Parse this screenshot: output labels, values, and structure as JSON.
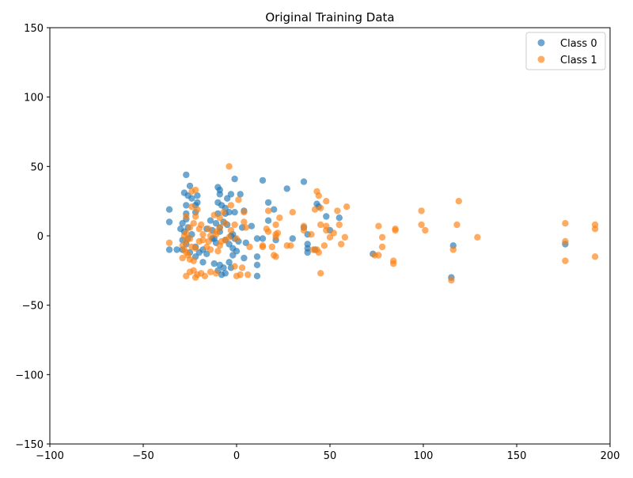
{
  "chart_data": {
    "type": "scatter",
    "title": "Original Training Data",
    "xlabel": "",
    "ylabel": "",
    "xlim": [
      -100,
      200
    ],
    "ylim": [
      -150,
      150
    ],
    "xticks": [
      -100,
      -50,
      0,
      50,
      100,
      150,
      200
    ],
    "yticks": [
      -150,
      -100,
      -50,
      0,
      50,
      100,
      150
    ],
    "grid": false,
    "legend_position": "top-right",
    "series": [
      {
        "name": "Class 0",
        "color": "#1f77b4",
        "points": [
          [
            -27,
            44
          ],
          [
            -1,
            41
          ],
          [
            14,
            40
          ],
          [
            36,
            39
          ],
          [
            -10,
            35
          ],
          [
            -9,
            33
          ],
          [
            -25,
            36
          ],
          [
            -28,
            31
          ],
          [
            -26,
            29
          ],
          [
            -24,
            27
          ],
          [
            -21,
            29
          ],
          [
            -21,
            24
          ],
          [
            -22,
            22
          ],
          [
            -27,
            22
          ],
          [
            -27,
            16
          ],
          [
            -22,
            17
          ],
          [
            -27,
            12
          ],
          [
            -29,
            9
          ],
          [
            -26,
            6
          ],
          [
            -28,
            3
          ],
          [
            -26,
            -2
          ],
          [
            -27,
            -6
          ],
          [
            -29,
            -10
          ],
          [
            -25,
            -12
          ],
          [
            -22,
            -15
          ],
          [
            -18,
            -19
          ],
          [
            -12,
            -20
          ],
          [
            -9,
            -21
          ],
          [
            -7,
            -23
          ],
          [
            -4,
            -19
          ],
          [
            -3,
            -23
          ],
          [
            -6,
            -27
          ],
          [
            -8,
            -28
          ],
          [
            -10,
            -25
          ],
          [
            -9,
            30
          ],
          [
            -10,
            24
          ],
          [
            -8,
            22
          ],
          [
            -6,
            20
          ],
          [
            -6,
            16
          ],
          [
            -10,
            16
          ],
          [
            -14,
            11
          ],
          [
            -11,
            9
          ],
          [
            -9,
            6
          ],
          [
            -13,
            4
          ],
          [
            -9,
            3
          ],
          [
            -13,
            -2
          ],
          [
            -11,
            -5
          ],
          [
            -6,
            -3
          ],
          [
            -4,
            -6
          ],
          [
            -2,
            -9
          ],
          [
            0,
            -11
          ],
          [
            -2,
            -14
          ],
          [
            4,
            -16
          ],
          [
            -5,
            27
          ],
          [
            -4,
            17
          ],
          [
            -3,
            30
          ],
          [
            -1,
            17
          ],
          [
            5,
            -5
          ],
          [
            4,
            18
          ],
          [
            2,
            30
          ],
          [
            8,
            7
          ],
          [
            11,
            -2
          ],
          [
            11,
            -15
          ],
          [
            11,
            -21
          ],
          [
            11,
            -29
          ],
          [
            14,
            -2
          ],
          [
            17,
            11
          ],
          [
            17,
            24
          ],
          [
            20,
            19
          ],
          [
            27,
            34
          ],
          [
            30,
            -2
          ],
          [
            36,
            6
          ],
          [
            38,
            1
          ],
          [
            38,
            -6
          ],
          [
            38,
            -9
          ],
          [
            38,
            -12
          ],
          [
            42,
            -10
          ],
          [
            43,
            23
          ],
          [
            44,
            21
          ],
          [
            48,
            14
          ],
          [
            50,
            4
          ],
          [
            55,
            13
          ],
          [
            73,
            -13
          ],
          [
            116,
            -7
          ],
          [
            115,
            -30
          ],
          [
            176,
            -6
          ],
          [
            -36,
            19
          ],
          [
            -36,
            10
          ],
          [
            -36,
            -10
          ],
          [
            -32,
            -10
          ],
          [
            -30,
            5
          ],
          [
            -29,
            -3
          ],
          [
            -24,
            1
          ],
          [
            -22,
            -8
          ],
          [
            -20,
            -12
          ],
          [
            -18,
            -10
          ],
          [
            -16,
            -13
          ],
          [
            -16,
            5
          ],
          [
            -12,
            -2
          ],
          [
            -7,
            10
          ],
          [
            -3,
            0
          ],
          [
            1,
            -4
          ],
          [
            -2,
            1
          ],
          [
            -1,
            -2
          ],
          [
            3,
            6
          ],
          [
            21,
            -3
          ],
          [
            -5,
            8
          ]
        ]
      },
      {
        "name": "Class 1",
        "color": "#ff7f0e",
        "points": [
          [
            -4,
            50
          ],
          [
            1,
            26
          ],
          [
            -3,
            22
          ],
          [
            -7,
            17
          ],
          [
            -9,
            13
          ],
          [
            -6,
            9
          ],
          [
            -9,
            6
          ],
          [
            -11,
            3
          ],
          [
            -14,
            0
          ],
          [
            -15,
            -4
          ],
          [
            -16,
            -8
          ],
          [
            -14,
            -10
          ],
          [
            -10,
            -11
          ],
          [
            -9,
            -7
          ],
          [
            -6,
            -3
          ],
          [
            -4,
            -1
          ],
          [
            0,
            -2
          ],
          [
            -3,
            4
          ],
          [
            -1,
            8
          ],
          [
            4,
            17
          ],
          [
            4,
            10
          ],
          [
            5,
            6
          ],
          [
            7,
            -8
          ],
          [
            3,
            -23
          ],
          [
            2,
            -28
          ],
          [
            0,
            -29
          ],
          [
            -1,
            -22
          ],
          [
            6,
            -28
          ],
          [
            -11,
            -27
          ],
          [
            -14,
            -26
          ],
          [
            -17,
            -29
          ],
          [
            -19,
            -27
          ],
          [
            -21,
            -28
          ],
          [
            -23,
            -25
          ],
          [
            -25,
            -26
          ],
          [
            -27,
            -29
          ],
          [
            -22,
            -30
          ],
          [
            -25,
            -17
          ],
          [
            -24,
            -8
          ],
          [
            -27,
            -4
          ],
          [
            -29,
            -16
          ],
          [
            -26,
            -14
          ],
          [
            -28,
            -10
          ],
          [
            -29,
            -7
          ],
          [
            -28,
            0
          ],
          [
            -27,
            2
          ],
          [
            -25,
            6
          ],
          [
            -23,
            9
          ],
          [
            -22,
            14
          ],
          [
            -21,
            19
          ],
          [
            -24,
            21
          ],
          [
            -22,
            33
          ],
          [
            -24,
            32
          ],
          [
            -20,
            5
          ],
          [
            -18,
            1
          ],
          [
            -20,
            -4
          ],
          [
            -22,
            -9
          ],
          [
            -25,
            -2
          ],
          [
            -27,
            14
          ],
          [
            -36,
            -5
          ],
          [
            14,
            -7
          ],
          [
            14,
            -8
          ],
          [
            16,
            5
          ],
          [
            17,
            3
          ],
          [
            17,
            18
          ],
          [
            19,
            -8
          ],
          [
            20,
            -14
          ],
          [
            21,
            -15
          ],
          [
            21,
            -1
          ],
          [
            21,
            1
          ],
          [
            22,
            2
          ],
          [
            21,
            8
          ],
          [
            23,
            13
          ],
          [
            27,
            -7
          ],
          [
            29,
            -7
          ],
          [
            30,
            17
          ],
          [
            36,
            7
          ],
          [
            36,
            4
          ],
          [
            40,
            1
          ],
          [
            41,
            -10
          ],
          [
            42,
            19
          ],
          [
            43,
            -10
          ],
          [
            43,
            32
          ],
          [
            44,
            -12
          ],
          [
            44,
            29
          ],
          [
            45,
            8
          ],
          [
            45,
            20
          ],
          [
            45,
            -27
          ],
          [
            47,
            -7
          ],
          [
            48,
            7
          ],
          [
            48,
            4
          ],
          [
            48,
            25
          ],
          [
            50,
            -1
          ],
          [
            52,
            2
          ],
          [
            54,
            18
          ],
          [
            55,
            8
          ],
          [
            56,
            -6
          ],
          [
            58,
            -1
          ],
          [
            59,
            21
          ],
          [
            74,
            -14
          ],
          [
            76,
            7
          ],
          [
            76,
            -14
          ],
          [
            78,
            -8
          ],
          [
            78,
            -1
          ],
          [
            85,
            5
          ],
          [
            85,
            4
          ],
          [
            84,
            -18
          ],
          [
            84,
            -20
          ],
          [
            99,
            18
          ],
          [
            99,
            8
          ],
          [
            101,
            4
          ],
          [
            115,
            -32
          ],
          [
            116,
            -10
          ],
          [
            118,
            8
          ],
          [
            119,
            25
          ],
          [
            129,
            -1
          ],
          [
            176,
            9
          ],
          [
            176,
            -4
          ],
          [
            176,
            -18
          ],
          [
            192,
            8
          ],
          [
            192,
            5
          ],
          [
            192,
            -15
          ],
          [
            -12,
            15
          ],
          [
            -15,
            5
          ],
          [
            -18,
            -3
          ],
          [
            -23,
            -18
          ],
          [
            -27,
            -12
          ],
          [
            -19,
            8
          ],
          [
            -11,
            1
          ],
          [
            -8,
            -4
          ]
        ]
      }
    ]
  }
}
